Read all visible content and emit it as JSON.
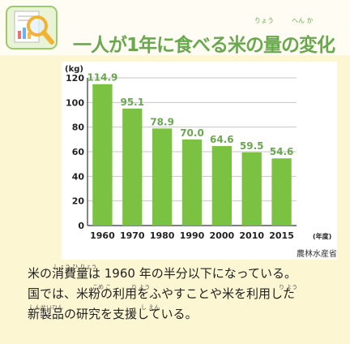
{
  "header": {
    "title": "一人が1年に食べる米の量の変化",
    "ruby_ryou": "りょう",
    "ruby_henka": "へん か",
    "icon": "magnifier-chart-icon"
  },
  "chart_data": {
    "type": "bar",
    "categories": [
      "1960",
      "1970",
      "1980",
      "1990",
      "2000",
      "2010",
      "2015"
    ],
    "values": [
      114.9,
      95.1,
      78.9,
      70.0,
      64.6,
      59.5,
      54.6
    ],
    "value_labels": [
      "114.9",
      "95.1",
      "78.9",
      "70.0",
      "64.6",
      "59.5",
      "54.6"
    ],
    "ylabel": "(kg)",
    "x_unit": "(年度)",
    "ylim": [
      0,
      120
    ],
    "yticks": [
      "0",
      "20",
      "40",
      "60",
      "80",
      "100",
      "120"
    ],
    "grid": true,
    "bar_color": "#7cc242",
    "label_color": "#6aa84f"
  },
  "source": "農林水産省",
  "body": {
    "line1_ruby": "しょう ひ りょう",
    "line1": "米の消費量は 1960 年の半分以下になっている。",
    "line2_ruby_a": "こめ こ",
    "line2_ruby_b": "り よう",
    "line2_ruby_c": "り よう",
    "line2": "国では、米粉の利用をふやすことや米を利用した",
    "line3_ruby_a": "しんせいひん",
    "line3_ruby_b": "し えん",
    "line3": "新製品の研究を支援している。"
  }
}
